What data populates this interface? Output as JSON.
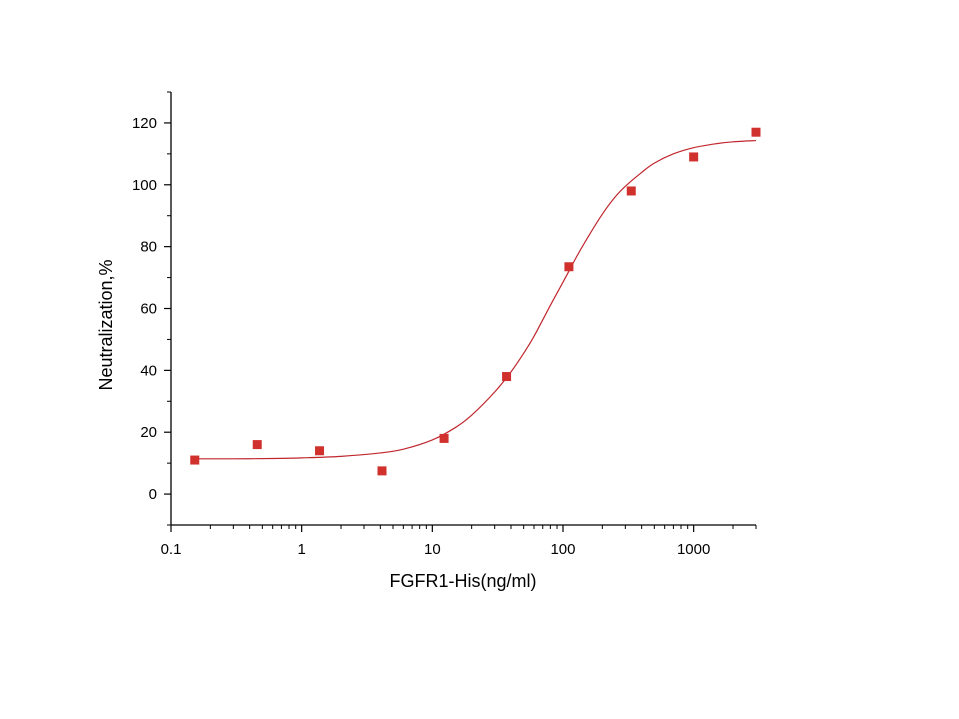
{
  "chart_data": {
    "type": "scatter",
    "title": "",
    "xlabel": "FGFR1-His(ng/ml)",
    "ylabel": "Neutralization,%",
    "x_scale": "log",
    "xlim": [
      0.1,
      3000
    ],
    "ylim": [
      -10,
      130
    ],
    "x_ticks": [
      "0.1",
      "1",
      "10",
      "100",
      "1000"
    ],
    "y_ticks": [
      "0",
      "20",
      "40",
      "60",
      "80",
      "100",
      "120"
    ],
    "grid": false,
    "legend": "none",
    "colors": {
      "points": "#d0312d",
      "fit_line": "#c0272d",
      "axis": "#000000"
    },
    "series": [
      {
        "type": "scatter",
        "x": [
          0.152,
          0.457,
          1.37,
          4.12,
          12.3,
          37.0,
          111,
          333,
          1000,
          3000
        ],
        "y": [
          11,
          16,
          14,
          7.5,
          18,
          38,
          73.5,
          98,
          109,
          117
        ]
      },
      {
        "type": "fitted-curve",
        "x": [
          0.152,
          0.3,
          0.6,
          1,
          2,
          4,
          6,
          10,
          15,
          20,
          30,
          40,
          50,
          60,
          80,
          100,
          130,
          160,
          200,
          250,
          300,
          400,
          500,
          700,
          1000,
          1500,
          2000,
          3000
        ],
        "y": [
          11.4,
          11.4,
          11.5,
          11.7,
          12.2,
          13.3,
          14.5,
          17.5,
          21.5,
          25.5,
          33,
          39.5,
          45.5,
          51,
          61,
          68.5,
          77.5,
          84,
          90.5,
          96,
          99.5,
          104,
          107,
          110,
          112,
          113.3,
          113.9,
          114.3
        ]
      }
    ]
  }
}
